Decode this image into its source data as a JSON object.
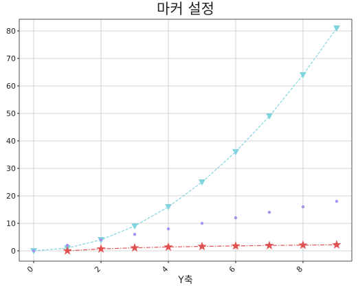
{
  "chart_data": {
    "type": "line",
    "title": "마커 설정",
    "x_label": "Y축",
    "x": [
      0,
      1,
      2,
      3,
      4,
      5,
      6,
      7,
      8,
      9
    ],
    "series": [
      {
        "color": "#80d4de",
        "linestyle": "dashed",
        "marker": "triangle-down",
        "values": [
          0,
          1,
          4,
          9,
          16,
          25,
          36,
          49,
          64,
          81
        ]
      },
      {
        "color": "#a392f0",
        "linestyle": "none",
        "marker": "circle",
        "values": [
          0,
          2,
          4,
          6,
          8,
          10,
          12,
          14,
          16,
          18
        ]
      },
      {
        "color": "#e05050",
        "linestyle": "dashdot",
        "marker": "star",
        "values": [
          null,
          0,
          0.69,
          1.1,
          1.39,
          1.61,
          1.79,
          1.95,
          2.08,
          2.2
        ]
      }
    ],
    "xlim": [
      -0.43,
      9.45
    ],
    "ylim": [
      -3.75,
      84.25
    ],
    "xticks": [
      0,
      2,
      4,
      6,
      8
    ],
    "yticks": [
      0,
      10,
      20,
      30,
      40,
      50,
      60,
      70,
      80
    ],
    "grid": true
  }
}
